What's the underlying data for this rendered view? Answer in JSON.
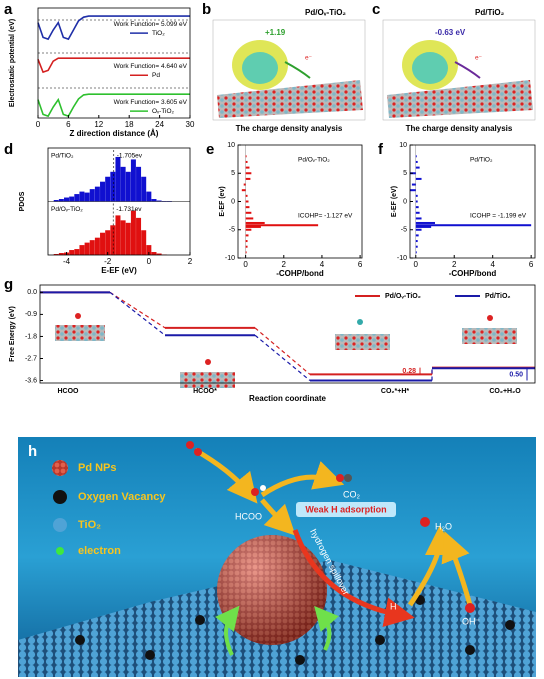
{
  "chart_data": [
    {
      "type": "line",
      "label": "a",
      "xlabel": "Z direction distance (Å)",
      "ylabel": "Electrostatic potential (eV)",
      "x": [
        0,
        1,
        2,
        3,
        4,
        5,
        6,
        7,
        8,
        9,
        10,
        11,
        12,
        14,
        20,
        30
      ],
      "xlim": [
        0,
        30
      ],
      "xticks": [
        0,
        6,
        12,
        18,
        24,
        30
      ],
      "ylim": [
        0,
        30
      ],
      "series": [
        {
          "name": "TiO₂",
          "color": "#1f2fa8",
          "values": [
            26,
            22,
            21.5,
            24,
            26,
            22,
            21.5,
            24,
            26.5,
            27.5,
            27.8,
            27.8,
            27.8,
            27.8,
            27.8,
            27.8
          ]
        },
        {
          "name": "Pd",
          "color": "#d42020",
          "values": [
            16,
            12.5,
            13,
            15.5,
            16.3,
            16.3,
            16.3,
            16.3,
            16.3,
            16.3,
            16.3,
            16.3,
            16.3,
            16.3,
            16.3,
            16.3
          ]
        },
        {
          "name": "Oᵥ-TiO₂",
          "color": "#2ec02e",
          "values": [
            5,
            1,
            0.5,
            3,
            5,
            1,
            0.5,
            3,
            5.2,
            6.3,
            6.5,
            6.5,
            6.5,
            6.5,
            6.5,
            6.5
          ]
        }
      ],
      "annotations": [
        "Work Function= 5.099 eV",
        "Work Function= 4.640 eV",
        "Work Function= 3.605 eV"
      ]
    },
    {
      "type": "bar",
      "label": "d",
      "xlabel": "E-EF (eV)",
      "ylabel": "PDOS",
      "x": [
        -4.5,
        -4.25,
        -4,
        -3.75,
        -3.5,
        -3.25,
        -3,
        -2.75,
        -2.5,
        -2.25,
        -2,
        -1.75,
        -1.5,
        -1.25,
        -1,
        -0.75,
        -0.5,
        -0.25,
        0,
        0.25,
        0.5,
        0.75,
        1,
        1.25,
        1.5
      ],
      "xlim": [
        -4.9,
        2
      ],
      "xticks": [
        -4,
        -2,
        0,
        2
      ],
      "ylim": [
        0,
        10
      ],
      "series": [
        {
          "name": "Pd/TiO₂",
          "color": "#1010d0",
          "values": [
            0.3,
            0.5,
            0.8,
            1,
            1.5,
            2,
            1.8,
            2.5,
            3,
            4,
            5,
            6,
            9,
            7,
            6,
            8.5,
            7,
            5,
            2,
            0.5,
            0.2,
            0.1,
            0.1,
            0,
            0
          ]
        },
        {
          "name": "Pd/Oᵥ-TiO₂",
          "color": "#e01010",
          "values": [
            0.2,
            0.4,
            0.5,
            1,
            1.2,
            2,
            2.5,
            3,
            3.5,
            4.5,
            5,
            6,
            8,
            7,
            6.5,
            9,
            7.5,
            5,
            2,
            0.6,
            0.3,
            0.1,
            0,
            0,
            0
          ]
        }
      ],
      "annotations": [
        {
          "text": "-1.705ev",
          "x": -1.705
        },
        {
          "text": "-1.731ev",
          "x": -1.731
        }
      ]
    },
    {
      "type": "barh",
      "label": "e",
      "title": "Pd/Oᵥ-TiO₂",
      "annotation": "ICOHP= -1.127 eV",
      "xlabel": "-COHP/bond",
      "ylabel": "E-EF (ev)",
      "y": [
        -9,
        -8,
        -7,
        -6,
        -5,
        -4.5,
        -4.2,
        -3.8,
        -3,
        -2,
        -1,
        0,
        1,
        2,
        3,
        4,
        5,
        6,
        7,
        8
      ],
      "values": [
        0.05,
        0.1,
        0.1,
        0.15,
        0.3,
        0.8,
        3.8,
        1,
        0.4,
        0.3,
        0.2,
        0.15,
        0.1,
        -0.2,
        -0.1,
        0.25,
        0.3,
        0.2,
        0.1,
        0.05
      ],
      "color": "#e01010",
      "xlim": [
        -0.4,
        6.1
      ],
      "xticks": [
        0,
        2,
        4,
        6
      ],
      "ylim": [
        -10,
        10
      ],
      "yticks": [
        -10,
        -5,
        0,
        5,
        10
      ]
    },
    {
      "type": "barh",
      "label": "f",
      "title": "Pd/TiO₂",
      "annotation": "ICOHP = -1.199 eV",
      "xlabel": "-COHP/bond",
      "ylabel": "E-EF (eV)",
      "y": [
        -9,
        -8,
        -7,
        -6,
        -5,
        -4.5,
        -4.2,
        -3.8,
        -3,
        -2,
        -1,
        0,
        1,
        2,
        3,
        4,
        5,
        6,
        7,
        8
      ],
      "values": [
        0.05,
        0.1,
        0.1,
        0.15,
        0.3,
        0.8,
        6,
        1,
        0.3,
        0.2,
        0.15,
        0.1,
        0.1,
        -0.3,
        -0.2,
        0.3,
        -0.3,
        0.2,
        0.1,
        0.05
      ],
      "color": "#1010d0",
      "xlim": [
        -0.3,
        6.2
      ],
      "xticks": [
        0,
        2,
        4,
        6
      ],
      "ylim": [
        -10,
        10
      ],
      "yticks": [
        -10,
        -5,
        0,
        5,
        10
      ]
    },
    {
      "type": "level",
      "label": "g",
      "xlabel": "Reaction coordinate",
      "ylabel": "Free Energy (eV)",
      "categories": [
        "HCOO",
        "HCOO*",
        "CO₂*+H*",
        "CO₂+H₂O"
      ],
      "ylim": [
        -3.7,
        0.3
      ],
      "yticks": [
        {
          "value": 0,
          "label": "0.0"
        },
        -0.9,
        -1.8,
        -2.7,
        -3.6
      ],
      "series": [
        {
          "name": "Pd/Oᵥ-TiO₂",
          "color": "#d42020",
          "values": [
            0,
            -1.45,
            -3.35,
            -3.07
          ]
        },
        {
          "name": "Pd/TiO₂",
          "color": "#1a1aa8",
          "values": [
            0,
            -1.75,
            -3.6,
            -3.1
          ]
        }
      ],
      "annotations": [
        "0.28",
        "0.50"
      ]
    }
  ],
  "images": [
    {
      "label": "b",
      "title": "Pd/Oᵥ-TiO₂",
      "charge": "+1.19",
      "electron": "e⁻",
      "caption": "The charge density analysis"
    },
    {
      "label": "c",
      "title": "Pd/TiO₂",
      "charge": "-0.63 eV",
      "electron": "e⁻",
      "caption": "The charge density analysis"
    }
  ],
  "illustration": {
    "label": "h",
    "legend": [
      "Pd NPs",
      "Oxygen Vacancy",
      "TiO₂",
      "electron"
    ],
    "formate": "HCOO",
    "co2": "CO₂",
    "weak": "Weak H adsorption",
    "spillover": "hydrogen spillover",
    "hydrogen": "H",
    "water": "H₂O",
    "hydroxide": "OH⁻"
  }
}
